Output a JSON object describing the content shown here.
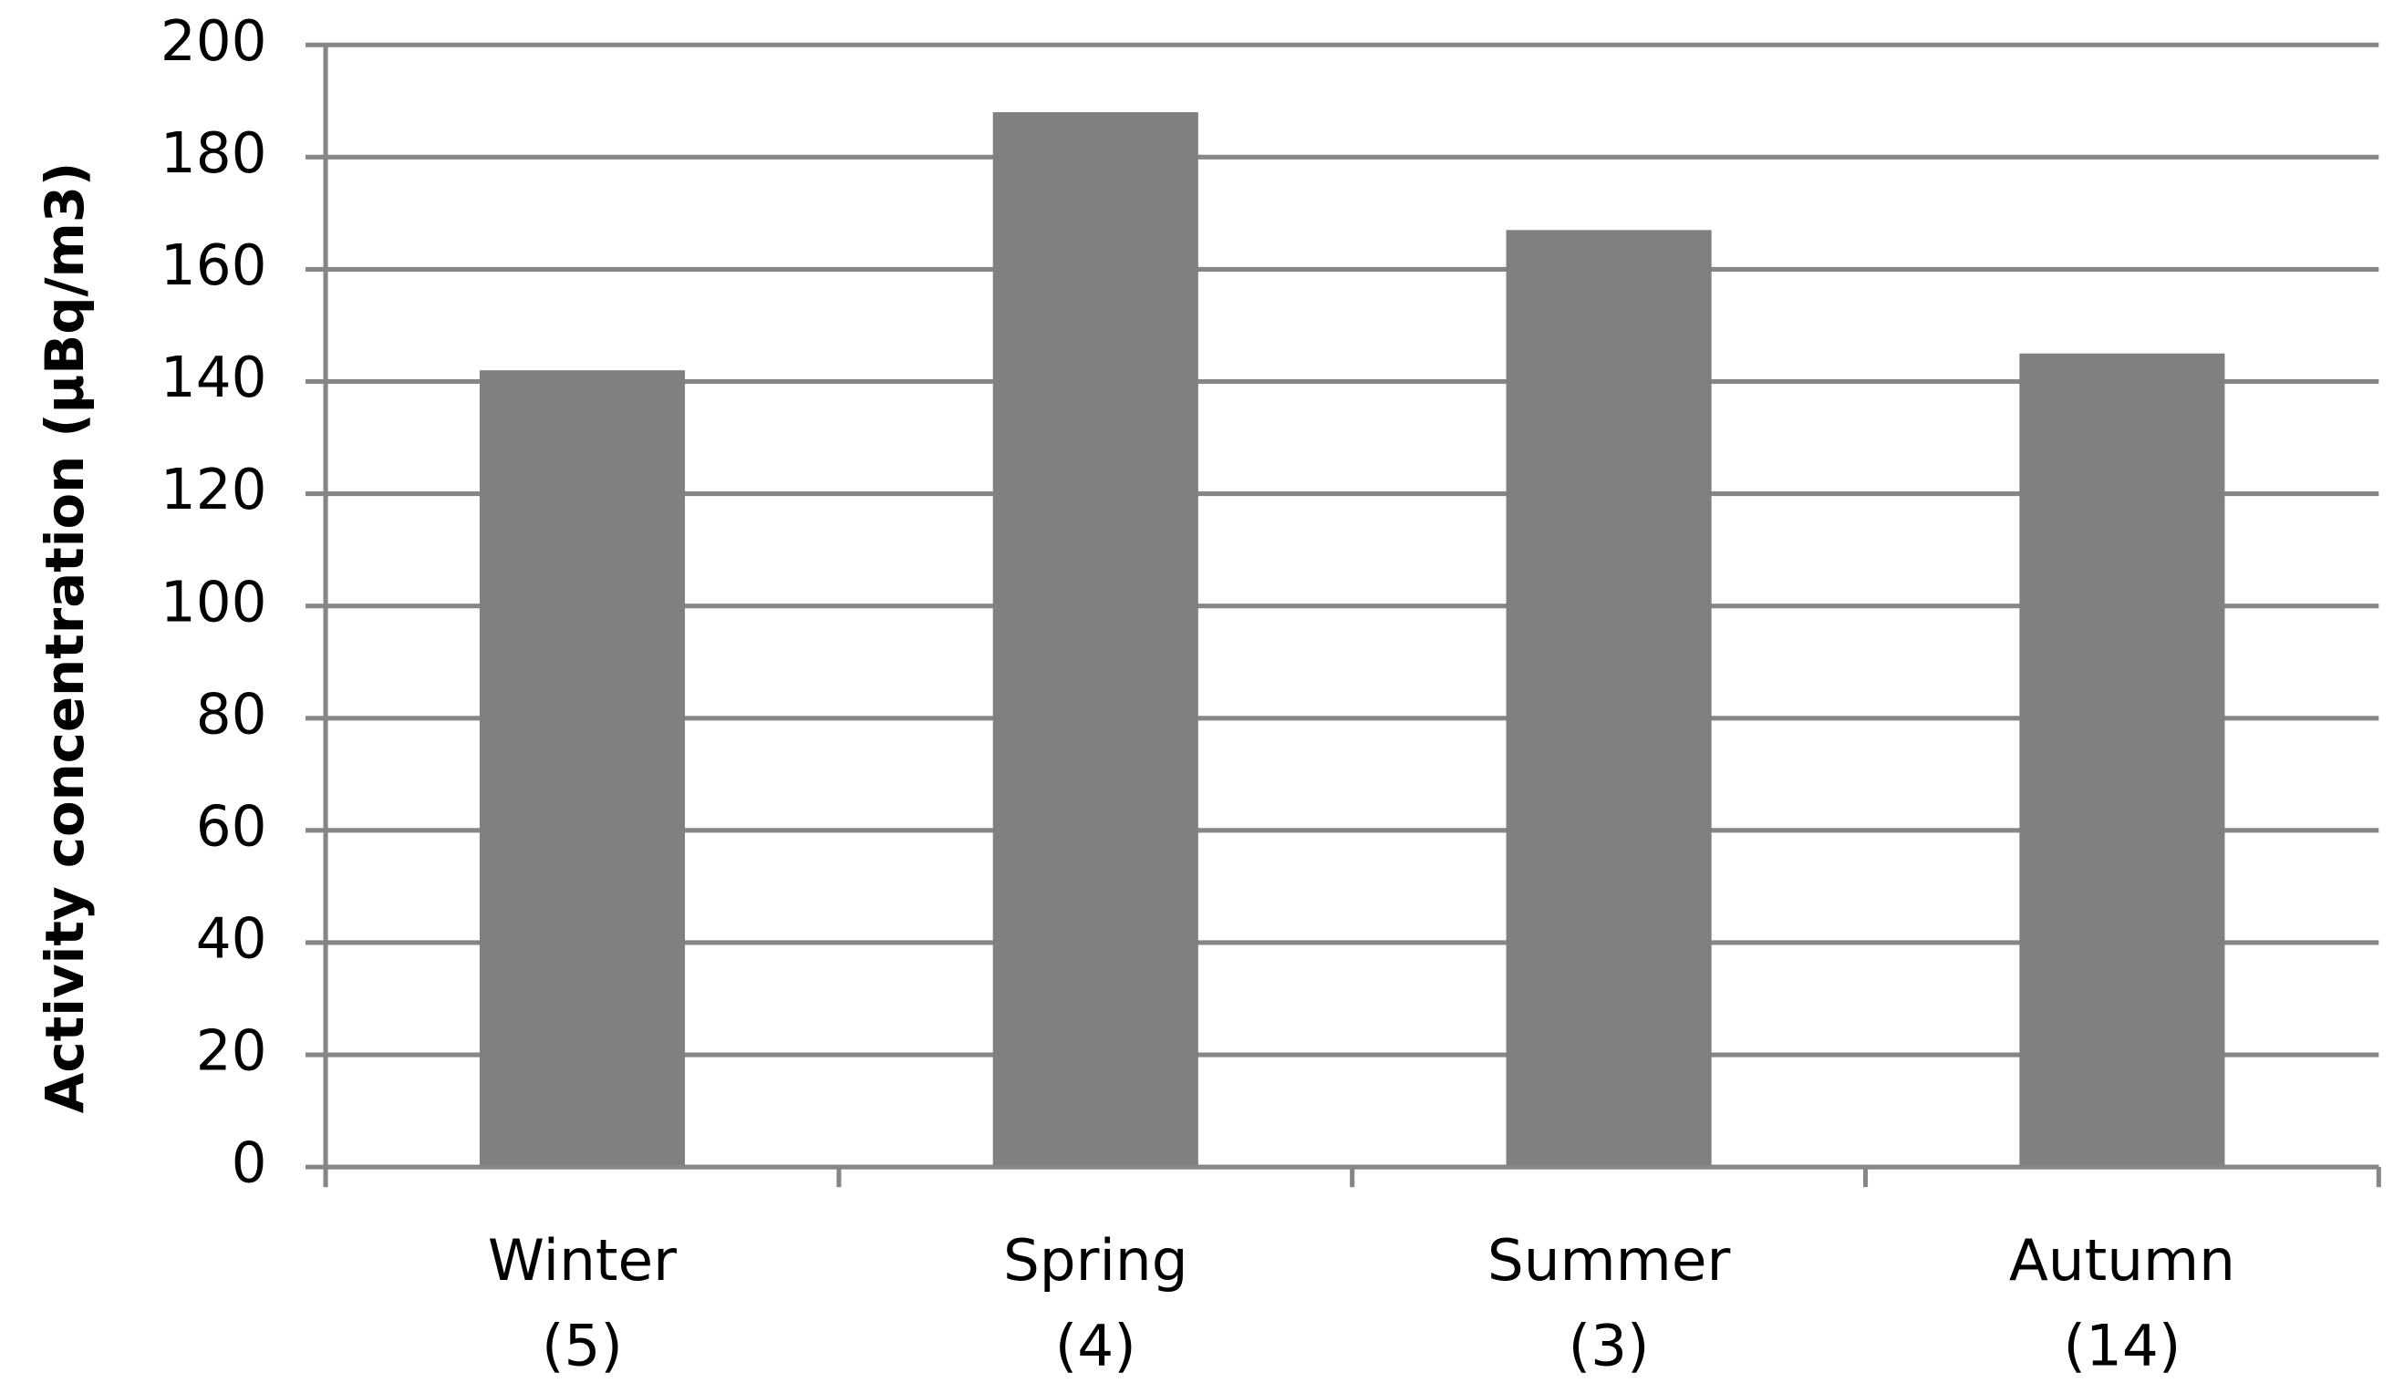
{
  "chart_data": {
    "type": "bar",
    "y_label": "Activity concentration (µBq/m3)",
    "categories": [
      [
        "Winter",
        "(5)"
      ],
      [
        "Spring",
        "(4)"
      ],
      [
        "Summer",
        "(3)"
      ],
      [
        "Autumn",
        "(14)"
      ]
    ],
    "values": [
      142,
      188,
      167,
      145
    ],
    "color": "#808080",
    "ylim": [
      0,
      200
    ],
    "yticks": [
      0,
      20,
      40,
      60,
      80,
      100,
      120,
      140,
      160,
      180,
      200
    ],
    "grid": true
  }
}
